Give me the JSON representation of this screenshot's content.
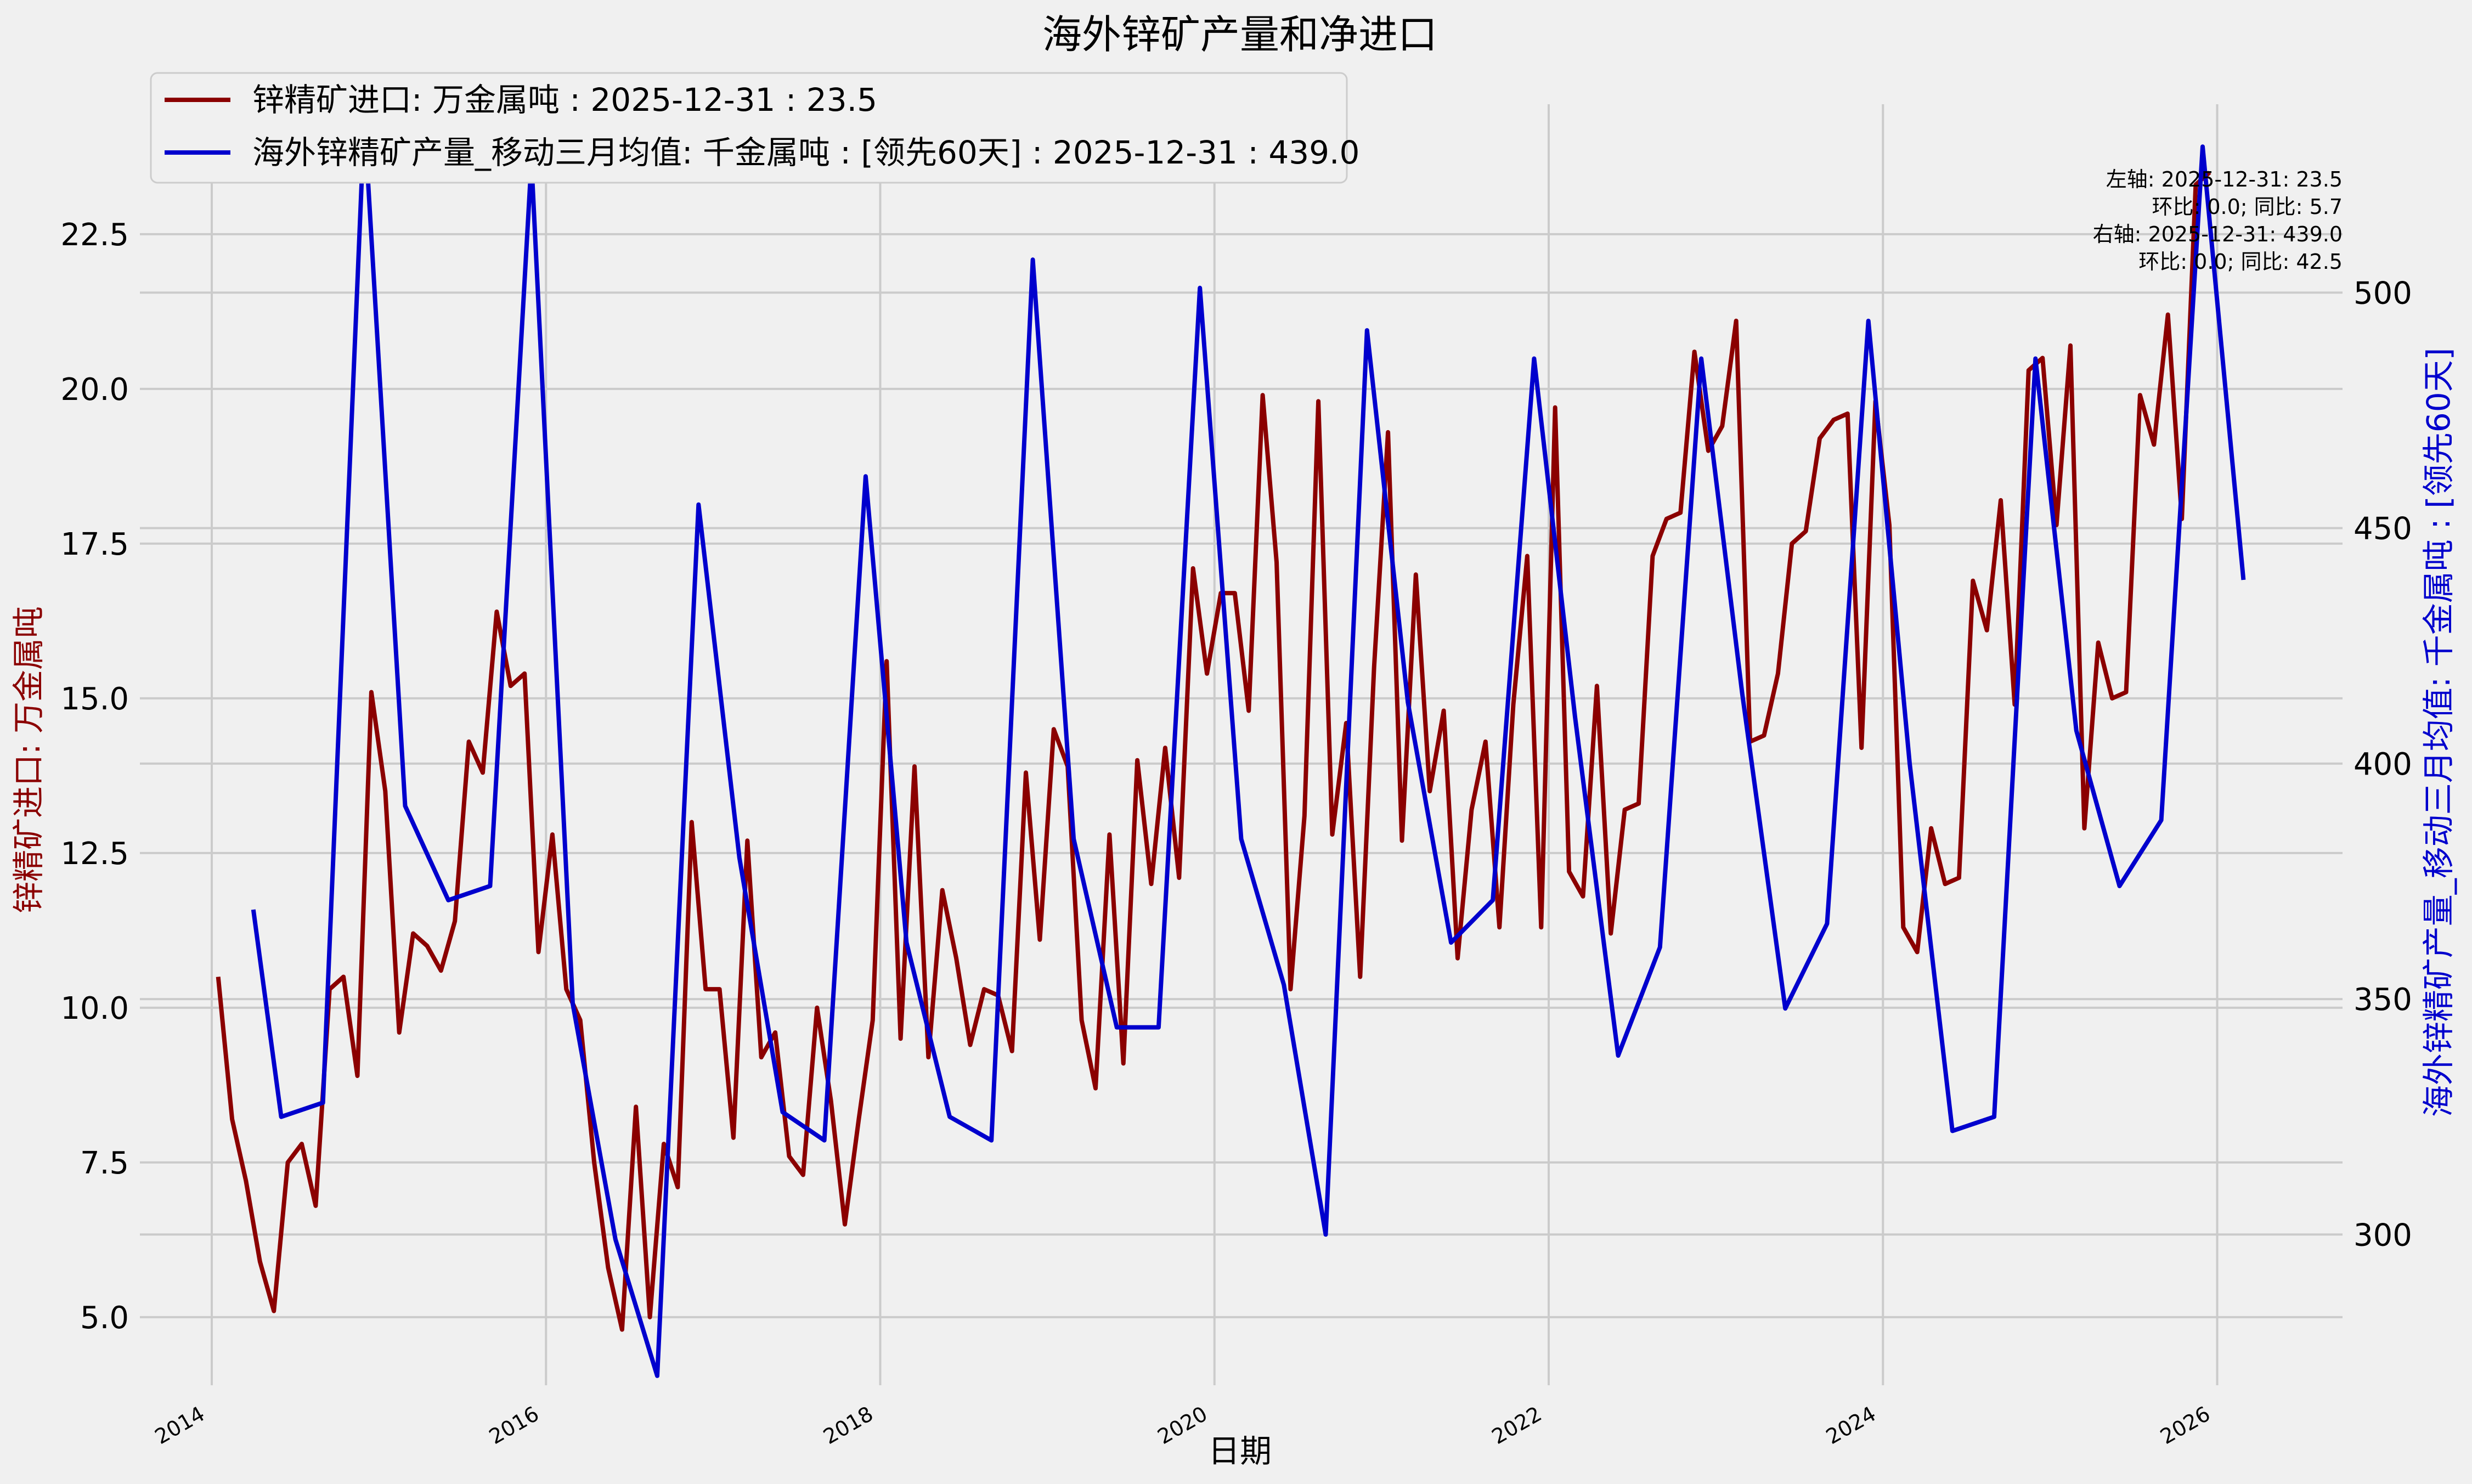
{
  "chart_data": {
    "type": "line",
    "title": "海外锌矿产量和净进口",
    "xlabel": "日期",
    "ylabel_left": "锌精矿进口: 万金属吨",
    "ylabel_right": "海外锌精矿产量_移动三月均值: 千金属吨 : [领先60天]",
    "x_ticks": [
      "2014",
      "2016",
      "2018",
      "2020",
      "2022",
      "2024",
      "2026"
    ],
    "left_ticks": [
      "5.0",
      "7.5",
      "10.0",
      "12.5",
      "15.0",
      "17.5",
      "20.0",
      "22.5"
    ],
    "right_ticks": [
      "300",
      "350",
      "400",
      "450",
      "500"
    ],
    "xlim": [
      2013.57,
      2026.75
    ],
    "ylim_left": [
      3.9,
      24.6
    ],
    "ylim_right": [
      268,
      540
    ],
    "grid": true,
    "legend_position": "top-left",
    "colors": {
      "left": "#8b0000",
      "right": "#0000cd",
      "background": "#f0f0f0",
      "grid": "#cbcbcb"
    },
    "series": [
      {
        "name": "锌精矿进口: 万金属吨 : 2025-12-31 : 23.5",
        "axis": "left",
        "x": [
          "2014-01",
          "2014-02",
          "2014-03",
          "2014-04",
          "2014-05",
          "2014-06",
          "2014-07",
          "2014-08",
          "2014-09",
          "2014-10",
          "2014-11",
          "2014-12",
          "2015-01",
          "2015-02",
          "2015-03",
          "2015-04",
          "2015-05",
          "2015-06",
          "2015-07",
          "2015-08",
          "2015-09",
          "2015-10",
          "2015-11",
          "2015-12",
          "2016-01",
          "2016-02",
          "2016-03",
          "2016-04",
          "2016-05",
          "2016-06",
          "2016-07",
          "2016-08",
          "2016-09",
          "2016-10",
          "2016-11",
          "2016-12",
          "2017-01",
          "2017-02",
          "2017-03",
          "2017-04",
          "2017-05",
          "2017-06",
          "2017-07",
          "2017-08",
          "2017-09",
          "2017-10",
          "2017-11",
          "2017-12",
          "2018-01",
          "2018-02",
          "2018-03",
          "2018-04",
          "2018-05",
          "2018-06",
          "2018-07",
          "2018-08",
          "2018-09",
          "2018-10",
          "2018-11",
          "2018-12",
          "2019-01",
          "2019-02",
          "2019-03",
          "2019-04",
          "2019-05",
          "2019-06",
          "2019-07",
          "2019-08",
          "2019-09",
          "2019-10",
          "2019-11",
          "2019-12",
          "2020-01",
          "2020-02",
          "2020-03",
          "2020-04",
          "2020-05",
          "2020-06",
          "2020-07",
          "2020-08",
          "2020-09",
          "2020-10",
          "2020-11",
          "2020-12",
          "2021-01",
          "2021-02",
          "2021-03",
          "2021-04",
          "2021-05",
          "2021-06",
          "2021-07",
          "2021-08",
          "2021-09",
          "2021-10",
          "2021-11",
          "2021-12",
          "2022-01",
          "2022-02",
          "2022-03",
          "2022-04",
          "2022-05",
          "2022-06",
          "2022-07",
          "2022-08",
          "2022-09",
          "2022-10",
          "2022-11",
          "2022-12",
          "2023-01",
          "2023-02",
          "2023-03",
          "2023-04",
          "2023-05",
          "2023-06",
          "2023-07",
          "2023-08",
          "2023-09",
          "2023-10",
          "2023-11",
          "2023-12",
          "2024-01",
          "2024-02",
          "2024-03",
          "2024-04",
          "2024-05",
          "2024-06",
          "2024-07",
          "2024-08",
          "2024-09",
          "2024-10",
          "2024-11",
          "2024-12",
          "2025-01",
          "2025-02",
          "2025-03",
          "2025-04",
          "2025-05",
          "2025-06",
          "2025-07",
          "2025-08",
          "2025-09",
          "2025-10",
          "2025-11",
          "2025-12"
        ],
        "y": [
          10.5,
          8.2,
          7.2,
          5.9,
          5.1,
          7.5,
          7.8,
          6.8,
          10.3,
          10.5,
          8.9,
          15.1,
          13.5,
          9.6,
          11.2,
          11.0,
          10.6,
          11.4,
          14.3,
          13.8,
          16.4,
          15.2,
          15.4,
          10.9,
          12.8,
          10.3,
          9.8,
          7.5,
          5.8,
          4.8,
          8.4,
          5.0,
          7.8,
          7.1,
          13.0,
          10.3,
          10.3,
          7.9,
          12.7,
          9.2,
          9.6,
          7.6,
          7.3,
          10.0,
          8.5,
          6.5,
          8.2,
          9.8,
          15.6,
          9.5,
          13.9,
          9.2,
          11.9,
          10.8,
          9.4,
          10.3,
          10.2,
          9.3,
          13.8,
          11.1,
          14.5,
          13.9,
          9.8,
          8.7,
          12.8,
          9.1,
          14.0,
          12.0,
          14.2,
          12.1,
          17.1,
          15.4,
          16.7,
          16.7,
          14.8,
          19.9,
          17.2,
          10.3,
          13.1,
          19.8,
          12.8,
          14.6,
          10.5,
          15.5,
          19.3,
          12.7,
          17.0,
          13.5,
          14.8,
          10.8,
          13.2,
          14.3,
          11.3,
          14.9,
          17.3,
          11.3,
          19.7,
          12.2,
          11.8,
          15.2,
          11.2,
          13.2,
          13.3,
          17.3,
          17.9,
          18.0,
          20.6,
          19.0,
          19.4,
          21.1,
          14.3,
          14.4,
          15.4,
          17.5,
          17.7,
          19.2,
          19.5,
          19.6,
          14.2,
          19.8,
          17.8,
          11.3,
          10.9,
          12.9,
          12.0,
          12.1,
          16.9,
          16.1,
          18.2,
          14.9,
          20.3,
          20.5,
          17.8,
          20.7,
          12.9,
          15.9,
          15.0,
          15.1,
          19.9,
          19.1,
          21.2,
          17.9,
          23.3,
          23.5
        ]
      },
      {
        "name": "海外锌精矿产量_移动三月均值: 千金属吨 : [领先60天]  : 2025-12-31 : 439.0",
        "axis": "right",
        "x": [
          "2014-03-31",
          "2014-05-31",
          "2014-08-31",
          "2014-11-30",
          "2015-02-28",
          "2015-05-31",
          "2015-08-31",
          "2015-11-30",
          "2016-02-29",
          "2016-05-31",
          "2016-08-31",
          "2016-11-30",
          "2017-02-28",
          "2017-05-31",
          "2017-08-31",
          "2017-11-30",
          "2018-02-28",
          "2018-05-31",
          "2018-08-31",
          "2018-11-30",
          "2019-02-28",
          "2019-05-31",
          "2019-08-31",
          "2019-11-30",
          "2020-02-29",
          "2020-05-31",
          "2020-08-31",
          "2020-11-30",
          "2021-02-28",
          "2021-05-31",
          "2021-08-31",
          "2021-11-30",
          "2022-02-28",
          "2022-05-31",
          "2022-08-31",
          "2022-11-30",
          "2023-02-28",
          "2023-05-31",
          "2023-08-31",
          "2023-11-30",
          "2024-02-29",
          "2024-05-31",
          "2024-08-31",
          "2024-11-30",
          "2025-02-28",
          "2025-05-31",
          "2025-08-31",
          "2025-11-30",
          "2026-02-28"
        ],
        "y": [
          369,
          325,
          328,
          537,
          391,
          371,
          374,
          528,
          349,
          299,
          270,
          455,
          380,
          326,
          320,
          461,
          362,
          325,
          320,
          507,
          384,
          344,
          344,
          501,
          384,
          353,
          300,
          492,
          413,
          362,
          371,
          486,
          410,
          338,
          361,
          486,
          415,
          348,
          366,
          494,
          400,
          322,
          325,
          486,
          407,
          374,
          388,
          531,
          439
        ]
      }
    ],
    "legend": [
      "锌精矿进口: 万金属吨 : 2025-12-31 : 23.5",
      "海外锌精矿产量_移动三月均值: 千金属吨 : [领先60天]  : 2025-12-31 : 439.0"
    ],
    "annotation": [
      "左轴:  2025-12-31: 23.5",
      "环比: 0.0; 同比: 5.7",
      "右轴:  2025-12-31: 439.0",
      "环比: 0.0; 同比: 42.5"
    ]
  }
}
